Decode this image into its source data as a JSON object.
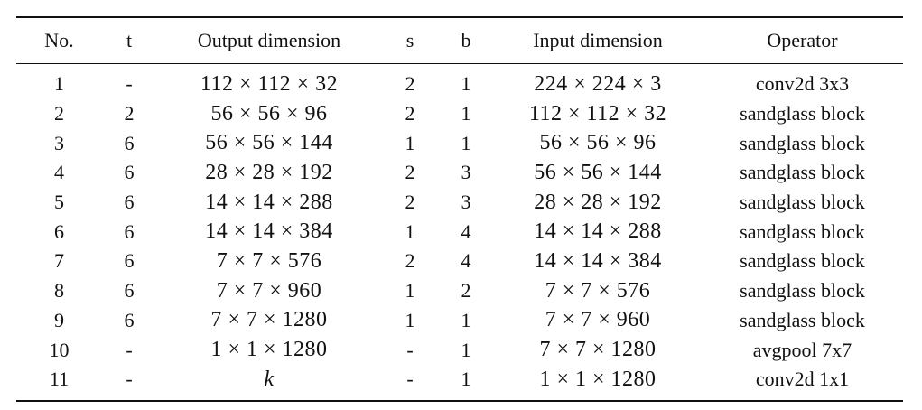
{
  "table": {
    "headers": [
      "No.",
      "t",
      "Output dimension",
      "s",
      "b",
      "Input dimension",
      "Operator"
    ],
    "rows": [
      {
        "no": "1",
        "t": "-",
        "out": "112 × 112 × 32",
        "s": "2",
        "b": "1",
        "in": "224 × 224 × 3",
        "op": "conv2d 3x3"
      },
      {
        "no": "2",
        "t": "2",
        "out": "56 × 56 × 96",
        "s": "2",
        "b": "1",
        "in": "112 × 112 × 32",
        "op": "sandglass block"
      },
      {
        "no": "3",
        "t": "6",
        "out": "56 × 56 × 144",
        "s": "1",
        "b": "1",
        "in": "56 × 56 × 96",
        "op": "sandglass block"
      },
      {
        "no": "4",
        "t": "6",
        "out": "28 × 28 × 192",
        "s": "2",
        "b": "3",
        "in": "56 × 56 × 144",
        "op": "sandglass block"
      },
      {
        "no": "5",
        "t": "6",
        "out": "14 × 14 × 288",
        "s": "2",
        "b": "3",
        "in": "28 × 28 × 192",
        "op": "sandglass block"
      },
      {
        "no": "6",
        "t": "6",
        "out": "14 × 14 × 384",
        "s": "1",
        "b": "4",
        "in": "14 × 14 × 288",
        "op": "sandglass block"
      },
      {
        "no": "7",
        "t": "6",
        "out": "7 × 7 × 576",
        "s": "2",
        "b": "4",
        "in": "14 × 14 × 384",
        "op": "sandglass block"
      },
      {
        "no": "8",
        "t": "6",
        "out": "7 × 7 × 960",
        "s": "1",
        "b": "2",
        "in": "7 × 7 × 576",
        "op": "sandglass block"
      },
      {
        "no": "9",
        "t": "6",
        "out": "7 × 7 × 1280",
        "s": "1",
        "b": "1",
        "in": "7 × 7 × 960",
        "op": "sandglass block"
      },
      {
        "no": "10",
        "t": "-",
        "out": "1 × 1 × 1280",
        "s": "-",
        "b": "1",
        "in": "7 × 7 × 1280",
        "op": "avgpool 7x7"
      },
      {
        "no": "11",
        "t": "-",
        "out": "k",
        "s": "-",
        "b": "1",
        "in": "1 × 1 × 1280",
        "op": "conv2d 1x1"
      }
    ]
  }
}
